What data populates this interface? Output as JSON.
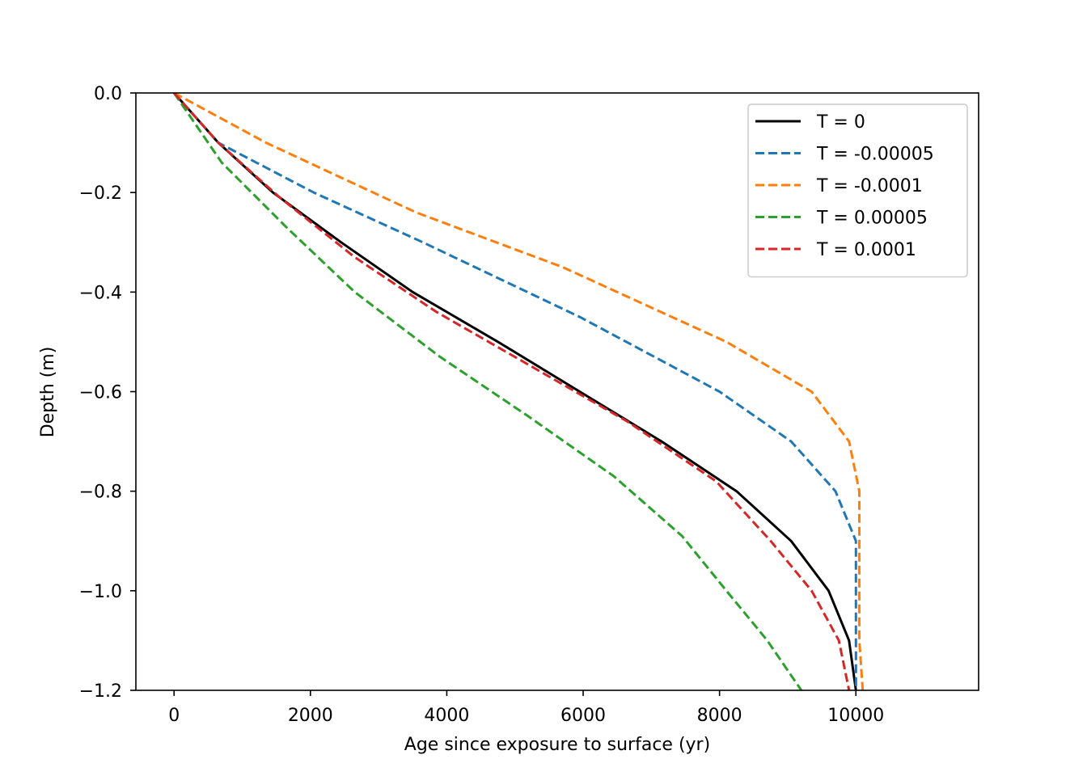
{
  "chart_data": {
    "type": "line",
    "title": "",
    "xlabel": "Age since exposure to surface (yr)",
    "ylabel": "Depth (m)",
    "xlim": [
      -560,
      11800
    ],
    "ylim": [
      -1.2,
      0.0
    ],
    "xticks": [
      0,
      2000,
      4000,
      6000,
      8000,
      10000
    ],
    "xtick_labels": [
      "0",
      "2000",
      "4000",
      "6000",
      "8000",
      "10000"
    ],
    "yticks": [
      0.0,
      -0.2,
      -0.4,
      -0.6,
      -0.8,
      -1.0,
      -1.2
    ],
    "ytick_labels": [
      "0.0",
      "−0.2",
      "−0.4",
      "−0.6",
      "−0.8",
      "−1.0",
      "−1.2"
    ],
    "grid": false,
    "legend_position": "top-right",
    "series": [
      {
        "name": "T = 0",
        "color": "#000000",
        "style": "solid",
        "x": [
          0,
          650,
          1450,
          2450,
          3500,
          4750,
          5950,
          7150,
          8250,
          9050,
          9600,
          9900,
          10000
        ],
        "y": [
          0.0,
          -0.1,
          -0.2,
          -0.3,
          -0.4,
          -0.5,
          -0.6,
          -0.7,
          -0.8,
          -0.9,
          -1.0,
          -1.1,
          -1.2
        ]
      },
      {
        "name": "T = -0.00005",
        "color": "#1f77b4",
        "style": "dashed",
        "x": [
          0,
          650,
          2050,
          3650,
          5950,
          8000,
          9050,
          9700,
          10000,
          10000,
          10000,
          10000
        ],
        "y": [
          0.0,
          -0.1,
          -0.2,
          -0.3,
          -0.45,
          -0.6,
          -0.7,
          -0.8,
          -0.9,
          -1.0,
          -1.1,
          -1.2
        ]
      },
      {
        "name": "T = -0.0001",
        "color": "#ff7f0e",
        "style": "dashed",
        "x": [
          0,
          1350,
          3550,
          5700,
          8100,
          9350,
          9900,
          10050,
          10050,
          10050,
          10100
        ],
        "y": [
          0.0,
          -0.1,
          -0.24,
          -0.35,
          -0.5,
          -0.6,
          -0.7,
          -0.8,
          -1.0,
          -1.1,
          -1.2
        ]
      },
      {
        "name": "T = 0.00005",
        "color": "#2ca02c",
        "style": "dashed",
        "x": [
          0,
          700,
          1650,
          2650,
          3900,
          5200,
          6450,
          7450,
          8100,
          8700,
          9200
        ],
        "y": [
          0.0,
          -0.14,
          -0.27,
          -0.4,
          -0.53,
          -0.65,
          -0.77,
          -0.89,
          -1.0,
          -1.1,
          -1.2
        ]
      },
      {
        "name": "T = 0.0001",
        "color": "#d62728",
        "style": "dashed",
        "x": [
          0,
          650,
          1550,
          2650,
          3850,
          5250,
          6650,
          7950,
          8750,
          9350,
          9750,
          9900
        ],
        "y": [
          0.0,
          -0.1,
          -0.21,
          -0.33,
          -0.44,
          -0.55,
          -0.66,
          -0.78,
          -0.9,
          -1.0,
          -1.1,
          -1.2
        ]
      }
    ]
  }
}
